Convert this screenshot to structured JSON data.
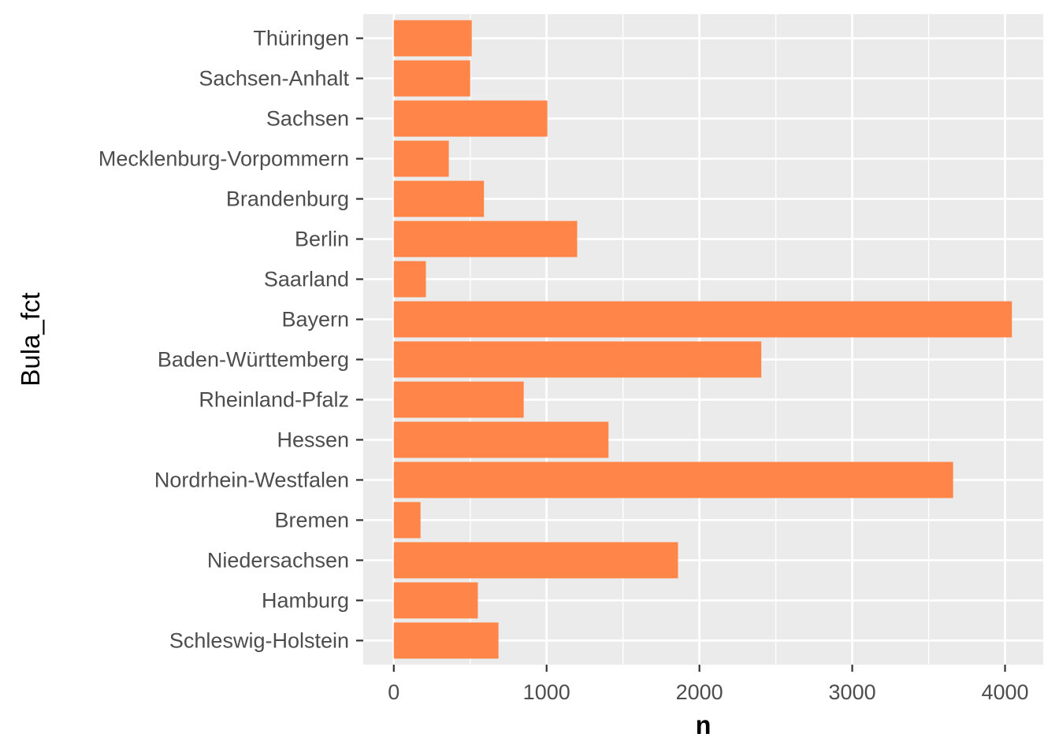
{
  "chart_data": {
    "type": "bar",
    "orientation": "horizontal",
    "categories": [
      "Schleswig-Holstein",
      "Hamburg",
      "Niedersachsen",
      "Bremen",
      "Nordrhein-Westfalen",
      "Hessen",
      "Rheinland-Pfalz",
      "Baden-Württemberg",
      "Bayern",
      "Saarland",
      "Berlin",
      "Brandenburg",
      "Mecklenburg-Vorpommern",
      "Sachsen",
      "Sachsen-Anhalt",
      "Thüringen"
    ],
    "values": [
      685,
      550,
      1860,
      175,
      3660,
      1405,
      850,
      2405,
      4045,
      210,
      1200,
      590,
      360,
      1005,
      500,
      510
    ],
    "xlabel": "n",
    "ylabel": "Bula_fct",
    "xlim": [
      -200,
      4250
    ],
    "xticks": [
      0,
      1000,
      2000,
      3000,
      4000
    ],
    "xtick_labels": [
      "0",
      "1000",
      "2000",
      "3000",
      "4000"
    ],
    "grid": true,
    "colors": {
      "bar": "#ff8548",
      "panel_background": "#ebebeb",
      "grid": "#ffffff",
      "tick_text": "#4d4d4d",
      "tick_mark": "#333333",
      "title_text": "#000000"
    }
  }
}
